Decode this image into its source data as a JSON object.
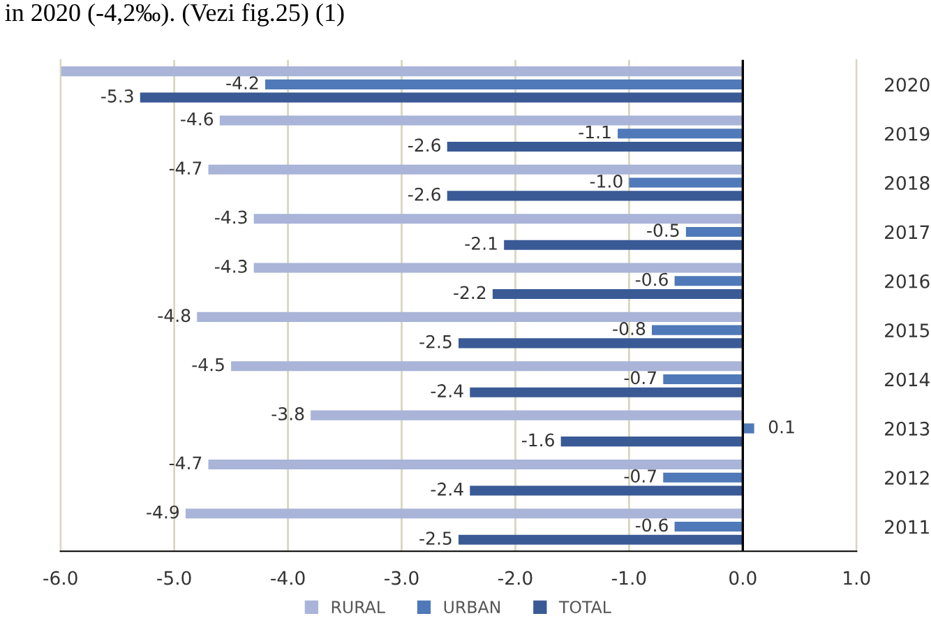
{
  "chart_data": {
    "type": "bar",
    "orientation": "horizontal",
    "annotations": [
      "in 2020 (-4,2‰). (Vezi fig.25) (1)"
    ],
    "categories": [
      "2020",
      "2019",
      "2018",
      "2017",
      "2016",
      "2015",
      "2014",
      "2013",
      "2012",
      "2011"
    ],
    "series": [
      {
        "name": "RURAL",
        "color": "#a9b4d8",
        "values": [
          -6.0,
          -4.6,
          -4.7,
          -4.3,
          -4.3,
          -4.8,
          -4.5,
          -3.8,
          -4.7,
          -4.9
        ],
        "value_labels": [
          null,
          "-4.6",
          "-4.7",
          "-4.3",
          "-4.3",
          "-4.8",
          "-4.5",
          "-3.8",
          "-4.7",
          "-4.9"
        ]
      },
      {
        "name": "URBAN",
        "color": "#4f79b8",
        "values": [
          -4.2,
          -1.1,
          -1.0,
          -0.5,
          -0.6,
          -0.8,
          -0.7,
          0.1,
          -0.7,
          -0.6
        ],
        "value_labels": [
          "-4.2",
          "-1.1",
          "-1.0",
          "-0.5",
          "-0.6",
          "-0.8",
          "-0.7",
          "0.1",
          "-0.7",
          "-0.6"
        ]
      },
      {
        "name": "TOTAL",
        "color": "#3a5a96",
        "values": [
          -5.3,
          -2.6,
          -2.6,
          -2.1,
          -2.2,
          -2.5,
          -2.4,
          -1.6,
          -2.4,
          -2.5
        ],
        "value_labels": [
          "-5.3",
          "-2.6",
          "-2.6",
          "-2.1",
          "-2.2",
          "-2.5",
          "-2.4",
          "-1.6",
          "-2.4",
          "-2.5"
        ]
      }
    ],
    "xlim": [
      -6.0,
      1.0
    ],
    "xticks": [
      {
        "value": -6,
        "label": "-6.0"
      },
      {
        "value": -5,
        "label": "-5.0"
      },
      {
        "value": -4,
        "label": "-4.0"
      },
      {
        "value": -3,
        "label": "-3.0"
      },
      {
        "value": -2,
        "label": "-2.0"
      },
      {
        "value": -1,
        "label": "-1.0"
      },
      {
        "value": 0,
        "label": "0.0"
      },
      {
        "value": 1,
        "label": "1.0"
      }
    ],
    "grid": "x",
    "legend": "bottom"
  }
}
